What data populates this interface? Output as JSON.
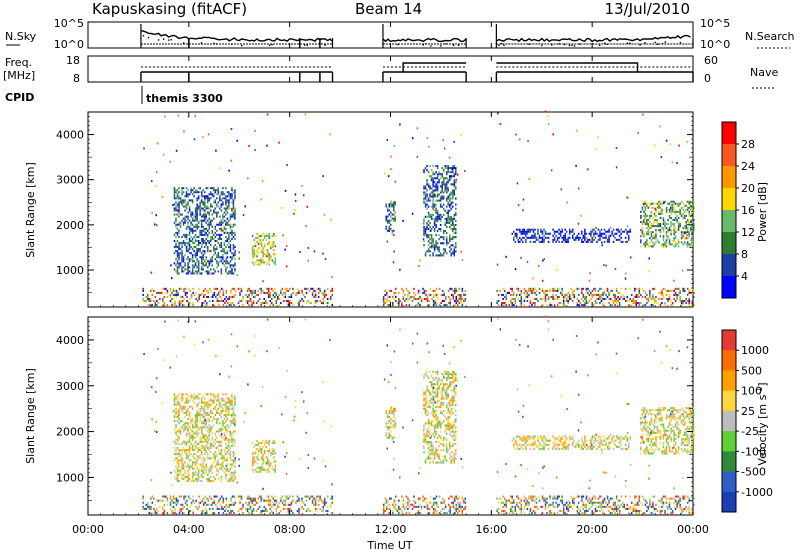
{
  "header": {
    "station": "Kapuskasing (fitACF)",
    "beam": "Beam 14",
    "date": "13/Jul/2010"
  },
  "top_panels": {
    "nsky_label": "N.Sky",
    "nsky_ticks": [
      "10^5",
      "10^0"
    ],
    "nsearch_label": "N.Search",
    "nsearch_ticks": [
      "10^5",
      "10^0"
    ],
    "freq_label": "Freq.",
    "freq_unit": "[MHz]",
    "freq_ticks": [
      "18",
      "8"
    ],
    "nave_label": "Nave",
    "nave_ticks": [
      "60",
      "0"
    ],
    "cpid_label": "CPID",
    "cpid_value": "themis 3300"
  },
  "colorbars": {
    "power": {
      "label": "Power [dB]",
      "ticks": [
        "28",
        "24",
        "20",
        "16",
        "12",
        "8",
        "4"
      ],
      "colors": [
        "#0000ff",
        "#1b3fa6",
        "#2e7d32",
        "#66bb6a",
        "#ffd600",
        "#ff9800",
        "#ff5722",
        "#ff0000"
      ]
    },
    "velocity": {
      "label": "Velocity [m s",
      "label_sup": "-1",
      "label_end": "]",
      "ticks": [
        "1000",
        "500",
        "100",
        "25",
        "-25",
        "-100",
        "-500",
        "-1000"
      ],
      "colors": [
        "#1a3fb5",
        "#2e5fc9",
        "#2f8a3a",
        "#5fcf3a",
        "#bdbdbd",
        "#ffd640",
        "#ffa000",
        "#ff6d00",
        "#e53935"
      ]
    }
  },
  "chart_data": [
    {
      "type": "heatmap",
      "title": "Power",
      "ylabel": "Slant Range [km]",
      "xlabel": "Time UT",
      "x_ticks": [
        "00:00",
        "04:00",
        "08:00",
        "12:00",
        "16:00",
        "20:00",
        "00:00"
      ],
      "y_ticks": [
        "1000",
        "2000",
        "3000",
        "4000"
      ],
      "xlim_hours": [
        0,
        24
      ],
      "ylim_km": [
        180,
        4500
      ],
      "data_gaps_hours": [
        [
          0,
          2.1
        ],
        [
          9.7,
          11.7
        ],
        [
          15.0,
          16.2
        ]
      ],
      "echo_regions": [
        {
          "t_start": 3.4,
          "t_end": 5.8,
          "r_min": 900,
          "r_max": 2800,
          "power_db": 8
        },
        {
          "t_start": 6.5,
          "t_end": 7.4,
          "r_min": 1100,
          "r_max": 1800,
          "power_db": 16
        },
        {
          "t_start": 11.8,
          "t_end": 12.2,
          "r_min": 1800,
          "r_max": 2500,
          "power_db": 8
        },
        {
          "t_start": 13.3,
          "t_end": 14.6,
          "r_min": 1300,
          "r_max": 3300,
          "power_db": 6
        },
        {
          "t_start": 16.8,
          "t_end": 21.5,
          "r_min": 1600,
          "r_max": 1900,
          "power_db": 5
        },
        {
          "t_start": 21.9,
          "t_end": 24.0,
          "r_min": 1500,
          "r_max": 2500,
          "power_db": 10
        }
      ]
    },
    {
      "type": "heatmap",
      "title": "Velocity",
      "ylabel": "Slant Range [km]",
      "xlabel": "Time UT",
      "x_ticks": [
        "00:00",
        "04:00",
        "08:00",
        "12:00",
        "16:00",
        "20:00",
        "00:00"
      ],
      "y_ticks": [
        "1000",
        "2000",
        "3000",
        "4000"
      ],
      "xlim_hours": [
        0,
        24
      ],
      "ylim_km": [
        180,
        4500
      ],
      "data_gaps_hours": [
        [
          0,
          2.1
        ],
        [
          9.7,
          11.7
        ],
        [
          15.0,
          16.2
        ]
      ]
    }
  ]
}
